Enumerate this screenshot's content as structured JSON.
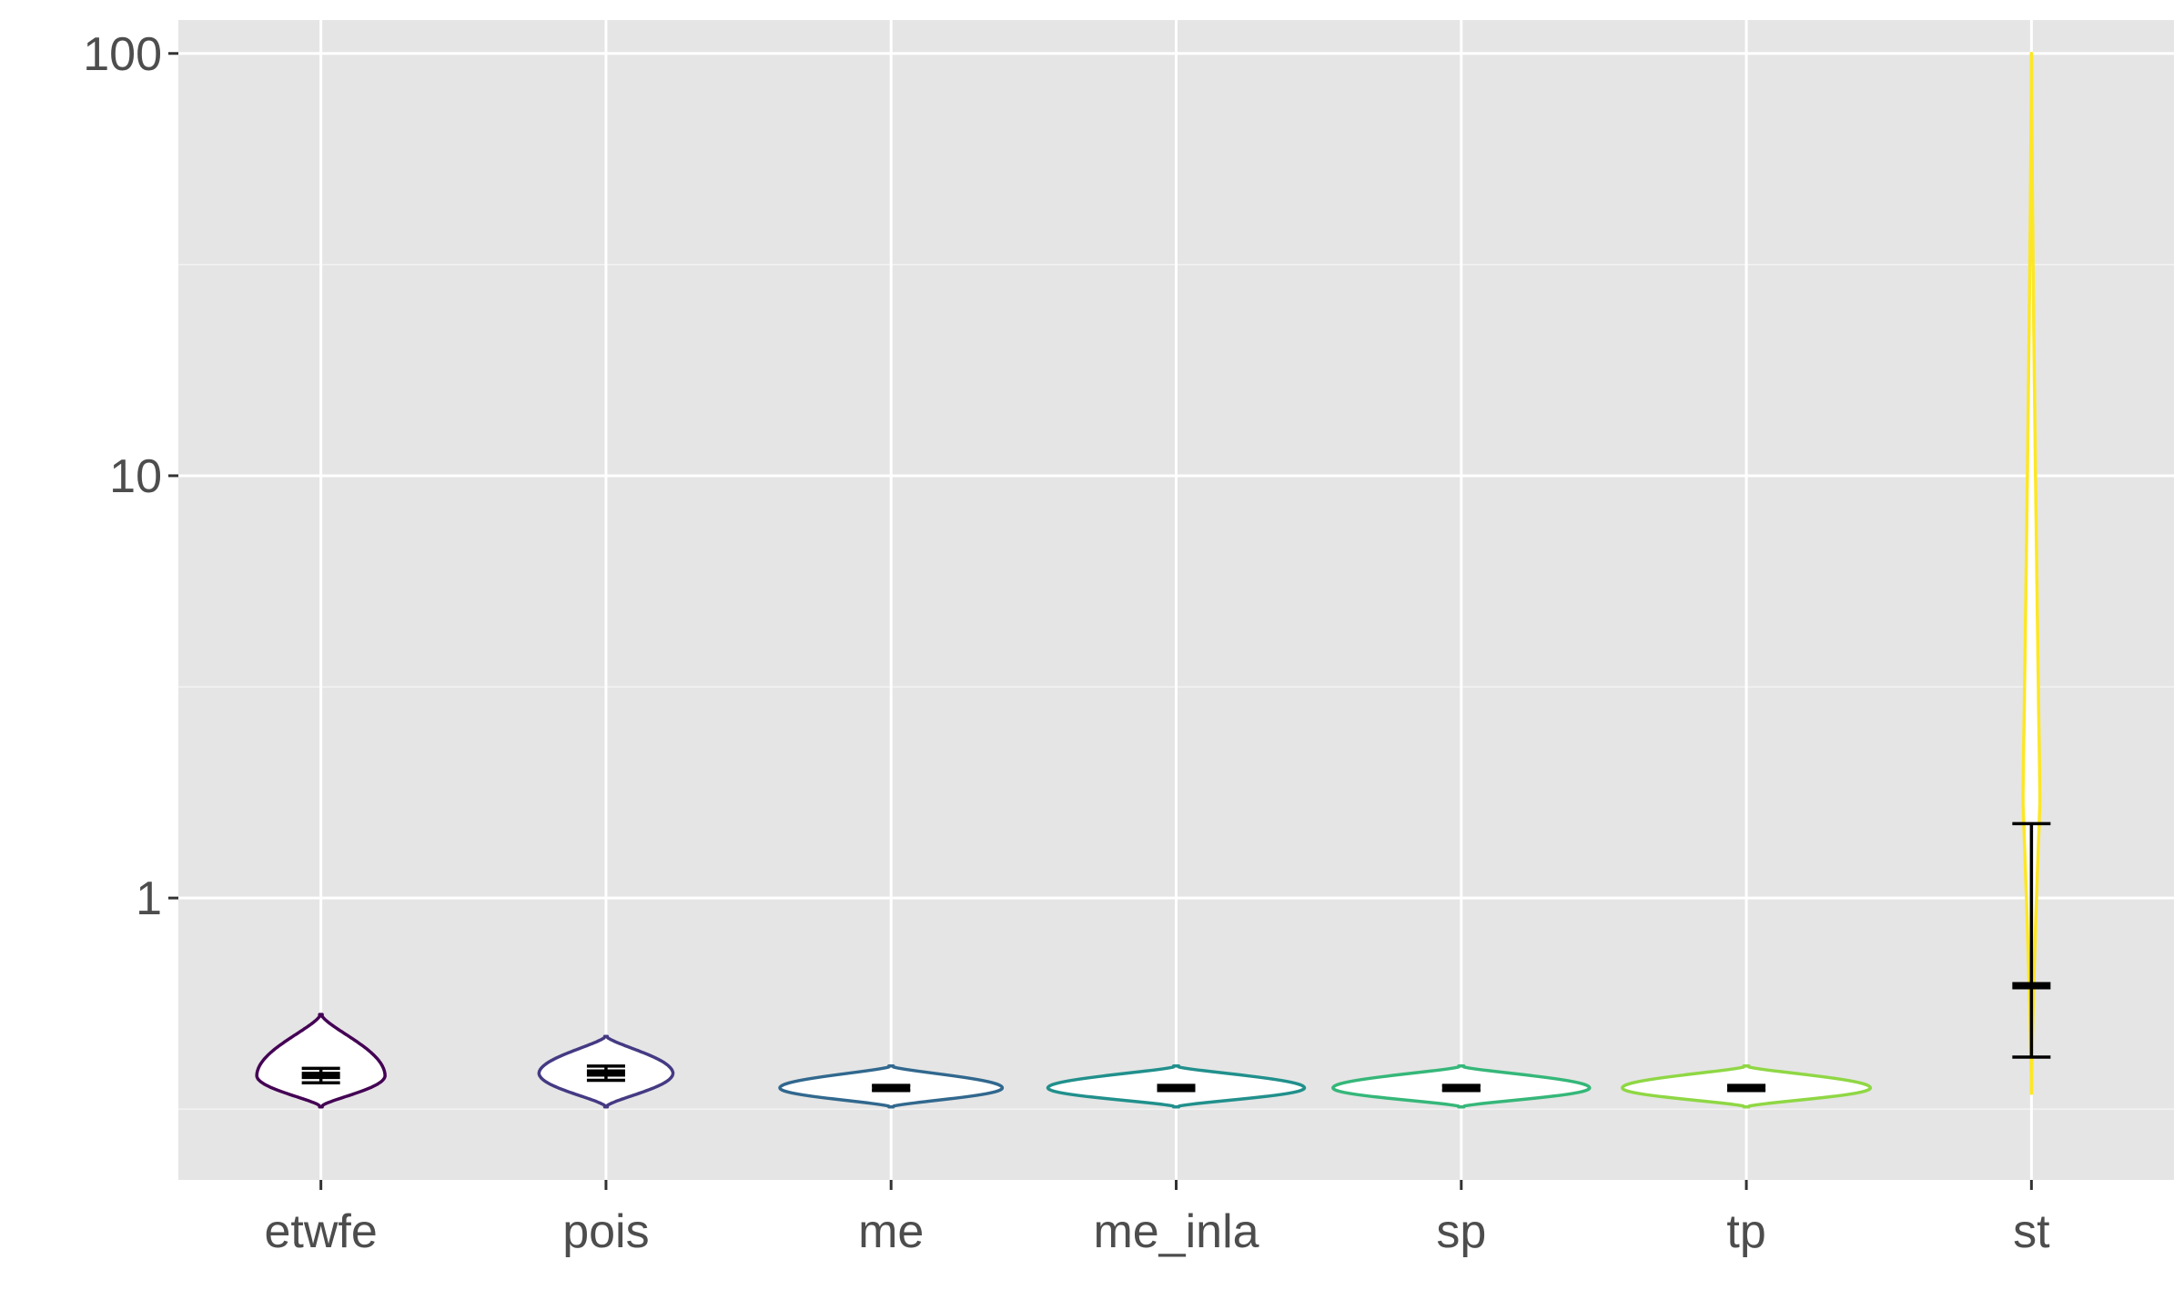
{
  "chart_data": {
    "type": "violin",
    "title": "",
    "xlabel": "",
    "ylabel": "",
    "y_scale": "log10",
    "ylim": [
      0.215,
      120
    ],
    "grid": true,
    "legend": "none",
    "categories": [
      "etwfe",
      "pois",
      "me",
      "me_inla",
      "sp",
      "tp",
      "st"
    ],
    "y_ticks": [
      1,
      10,
      100
    ],
    "y_tick_labels": [
      "1",
      "10",
      "100"
    ],
    "series": [
      {
        "category": "etwfe",
        "color": "#440154",
        "min": 0.32,
        "max": 0.53,
        "mode": 0.38,
        "mean": 0.38,
        "lower": 0.365,
        "upper": 0.395,
        "max_width": 0.45,
        "neck_width": 0.07
      },
      {
        "category": "pois",
        "color": "#443A83",
        "min": 0.32,
        "max": 0.47,
        "mode": 0.385,
        "mean": 0.385,
        "lower": 0.37,
        "upper": 0.4,
        "max_width": 0.47,
        "neck_width": 0.1
      },
      {
        "category": "me",
        "color": "#31688E",
        "min": 0.32,
        "max": 0.4,
        "mode": 0.355,
        "mean": 0.355,
        "lower": 0.35,
        "upper": 0.36,
        "max_width": 0.78,
        "neck_width": 0.12
      },
      {
        "category": "me_inla",
        "color": "#21908C",
        "min": 0.32,
        "max": 0.4,
        "mode": 0.355,
        "mean": 0.355,
        "lower": 0.35,
        "upper": 0.36,
        "max_width": 0.9,
        "neck_width": 0.12
      },
      {
        "category": "sp",
        "color": "#35B779",
        "min": 0.32,
        "max": 0.4,
        "mode": 0.355,
        "mean": 0.355,
        "lower": 0.35,
        "upper": 0.36,
        "max_width": 0.9,
        "neck_width": 0.12
      },
      {
        "category": "tp",
        "color": "#8FD744",
        "min": 0.32,
        "max": 0.4,
        "mode": 0.355,
        "mean": 0.355,
        "lower": 0.35,
        "upper": 0.36,
        "max_width": 0.87,
        "neck_width": 0.12
      },
      {
        "category": "st",
        "color": "#FDE725",
        "min": 0.345,
        "max": 100,
        "mode": 1.7,
        "mean": 0.62,
        "lower": 0.42,
        "upper": 1.5,
        "max_width": 0.06,
        "neck_width": 0.06
      }
    ]
  }
}
